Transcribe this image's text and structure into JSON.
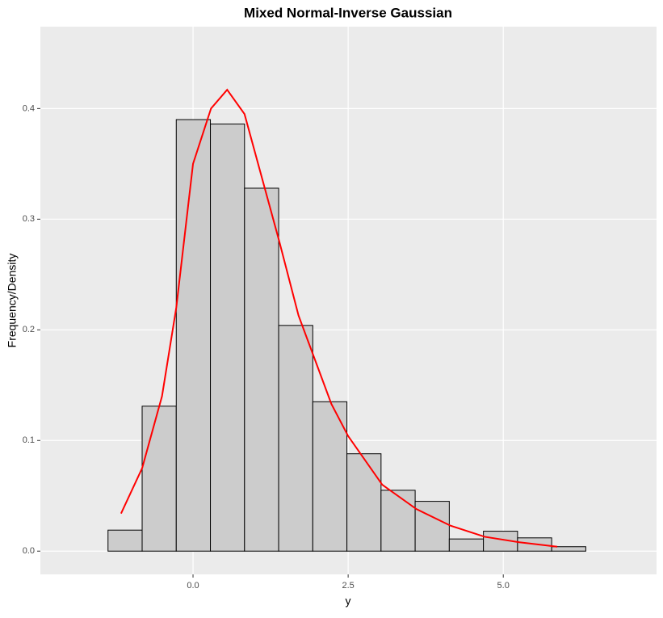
{
  "chart_data": {
    "type": "histogram",
    "title": "Mixed Normal-Inverse Gaussian",
    "x_label": "y",
    "y_label": "Frequency/Density",
    "bins": [
      -1.92,
      -1.37,
      -0.82,
      -0.27,
      0.28,
      0.83,
      1.38,
      1.93,
      2.48,
      3.03,
      3.58,
      4.13,
      4.68,
      5.23,
      5.78,
      6.33,
      6.88
    ],
    "values": [
      0,
      0.019,
      0.131,
      0.39,
      0.386,
      0.328,
      0.204,
      0.135,
      0.088,
      0.055,
      0.045,
      0.011,
      0.018,
      0.012,
      0.004,
      0
    ],
    "color": "#cccccc",
    "curve": {
      "color": "#ff0000",
      "x": [
        -1.16,
        -0.82,
        -0.5,
        -0.27,
        0.0,
        0.29,
        0.55,
        0.83,
        1.39,
        1.7,
        2.23,
        2.5,
        3.05,
        3.6,
        4.15,
        4.7,
        5.26,
        5.87
      ],
      "values": [
        0.034,
        0.075,
        0.14,
        0.22,
        0.35,
        0.4,
        0.417,
        0.395,
        0.28,
        0.213,
        0.133,
        0.104,
        0.06,
        0.038,
        0.023,
        0.013,
        0.008,
        0.004
      ]
    },
    "xlim": [
      -2.46,
      7.47
    ],
    "ylim": [
      -0.021,
      0.474
    ],
    "xticks": [
      {
        "value": 0,
        "label": "0.0"
      },
      2.5,
      {
        "value": 5,
        "label": "5.0"
      }
    ],
    "yticks": [
      {
        "value": 0,
        "label": "0.0"
      },
      0.1,
      0.2,
      0.3,
      0.4
    ],
    "grid": true
  }
}
